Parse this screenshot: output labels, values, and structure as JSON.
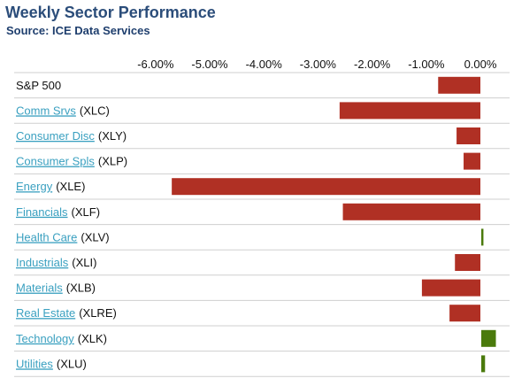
{
  "header": {
    "title": "Weekly Sector Performance",
    "subtitle": "Source: ICE Data Services"
  },
  "colors": {
    "negative": "#b03024",
    "positive": "#4a7a0c",
    "link": "#3aa0c0",
    "title": "#2b4d7a"
  },
  "chart_data": {
    "type": "bar",
    "orientation": "horizontal",
    "title": "Weekly Sector Performance",
    "subtitle": "Source: ICE Data Services",
    "xlim": [
      -6.5,
      0.5
    ],
    "ticks": [
      {
        "value": -6,
        "label": "-6.00%"
      },
      {
        "value": -5,
        "label": "-5.00%"
      },
      {
        "value": -4,
        "label": "-4.00%"
      },
      {
        "value": -3,
        "label": "-3.00%"
      },
      {
        "value": -2,
        "label": "-2.00%"
      },
      {
        "value": -1,
        "label": "-1.00%"
      },
      {
        "value": 0,
        "label": "0.00%"
      }
    ],
    "categories": [
      {
        "name": "S&P 500",
        "ticker": "",
        "link": false,
        "value": -0.78
      },
      {
        "name": "Comm Srvs",
        "ticker": "(XLC)",
        "link": true,
        "value": -2.6
      },
      {
        "name": "Consumer Disc",
        "ticker": "(XLY)",
        "link": true,
        "value": -0.44
      },
      {
        "name": "Consumer Spls",
        "ticker": "(XLP)",
        "link": true,
        "value": -0.31
      },
      {
        "name": "Energy",
        "ticker": "(XLE)",
        "link": true,
        "value": -5.7
      },
      {
        "name": "Financials",
        "ticker": "(XLF)",
        "link": true,
        "value": -2.54
      },
      {
        "name": "Health Care",
        "ticker": "(XLV)",
        "link": true,
        "value": 0.04
      },
      {
        "name": "Industrials",
        "ticker": "(XLI)",
        "link": true,
        "value": -0.47
      },
      {
        "name": "Materials",
        "ticker": "(XLB)",
        "link": true,
        "value": -1.08
      },
      {
        "name": "Real Estate",
        "ticker": "(XLRE)",
        "link": true,
        "value": -0.57
      },
      {
        "name": "Technology",
        "ticker": "(XLK)",
        "link": true,
        "value": 0.27
      },
      {
        "name": "Utilities",
        "ticker": "(XLU)",
        "link": true,
        "value": 0.07
      }
    ]
  }
}
